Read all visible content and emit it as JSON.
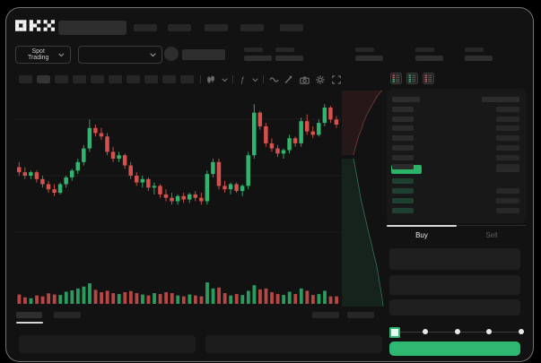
{
  "window": {
    "bg": "#121212",
    "border": "rgba(215,215,215,0.5)"
  },
  "colors": {
    "green": "#2eb872",
    "red": "#d5514d",
    "last_price_green": "#2bb467",
    "bid_row_green": "#1d4030",
    "text_bright": "#e9eaec",
    "text_dim": "#585c62",
    "placeholder": "#272727"
  },
  "header": {
    "logo": "OKX",
    "nav_item_count": 5
  },
  "market_bar": {
    "selector_label": "Spot Trading",
    "stat_group_count": 5
  },
  "chart_toolbar": {
    "interval_button_count": 10,
    "icons": [
      "chart-type-icon",
      "chevron-down-icon",
      "indicator-icon",
      "chevron-down-icon",
      "wave-icon",
      "draw-icon",
      "camera-icon",
      "settings-icon",
      "fullscreen-icon"
    ]
  },
  "orderbook": {
    "view_icons": [
      "book-combined-icon",
      "book-bids-icon",
      "book-asks-icon"
    ],
    "ask_row_count": 7,
    "bid_row_count": 4,
    "bid_right_bars": [
      false,
      true,
      true,
      true
    ]
  },
  "trade_form": {
    "tabs": [
      {
        "label": "Buy",
        "active": true
      },
      {
        "label": "Sell",
        "active": false
      }
    ],
    "input_box_count": 3,
    "slider": {
      "stops": 5,
      "active_stop": 0
    }
  },
  "chart_data": {
    "type": "candlestick",
    "title": "",
    "xlabel": "time (no labels shown)",
    "ylabel": "price (no labels shown, relative scale)",
    "ylim": [
      0,
      100
    ],
    "grid": "faint horizontal lines",
    "candle_format": [
      "open",
      "high",
      "low",
      "close"
    ],
    "candles": [
      [
        55,
        58,
        50,
        52
      ],
      [
        52,
        55,
        48,
        50
      ],
      [
        50,
        53,
        48,
        52
      ],
      [
        52,
        53,
        46,
        48
      ],
      [
        48,
        50,
        43,
        45
      ],
      [
        45,
        47,
        40,
        42
      ],
      [
        42,
        45,
        38,
        40
      ],
      [
        40,
        46,
        39,
        45
      ],
      [
        45,
        50,
        43,
        49
      ],
      [
        49,
        54,
        47,
        53
      ],
      [
        53,
        60,
        51,
        58
      ],
      [
        58,
        68,
        56,
        66
      ],
      [
        66,
        83,
        64,
        78
      ],
      [
        78,
        80,
        73,
        75
      ],
      [
        75,
        78,
        71,
        73
      ],
      [
        73,
        75,
        62,
        64
      ],
      [
        64,
        67,
        58,
        60
      ],
      [
        60,
        64,
        58,
        62
      ],
      [
        62,
        63,
        54,
        56
      ],
      [
        56,
        58,
        48,
        50
      ],
      [
        50,
        52,
        44,
        46
      ],
      [
        46,
        50,
        43,
        48
      ],
      [
        48,
        49,
        41,
        43
      ],
      [
        43,
        46,
        39,
        44
      ],
      [
        44,
        45,
        37,
        39
      ],
      [
        39,
        42,
        35,
        37
      ],
      [
        37,
        40,
        33,
        35
      ],
      [
        35,
        39,
        33,
        38
      ],
      [
        38,
        40,
        34,
        36
      ],
      [
        36,
        40,
        34,
        39
      ],
      [
        39,
        41,
        35,
        37
      ],
      [
        37,
        40,
        33,
        35
      ],
      [
        35,
        53,
        33,
        51
      ],
      [
        51,
        60,
        49,
        58
      ],
      [
        58,
        60,
        42,
        44
      ],
      [
        44,
        47,
        40,
        42
      ],
      [
        42,
        46,
        39,
        45
      ],
      [
        45,
        46,
        40,
        41
      ],
      [
        41,
        45,
        38,
        44
      ],
      [
        44,
        64,
        42,
        62
      ],
      [
        62,
        92,
        60,
        87
      ],
      [
        87,
        88,
        77,
        79
      ],
      [
        79,
        81,
        67,
        69
      ],
      [
        69,
        72,
        64,
        66
      ],
      [
        66,
        68,
        61,
        63
      ],
      [
        63,
        66,
        60,
        65
      ],
      [
        65,
        74,
        63,
        72
      ],
      [
        72,
        73,
        67,
        69
      ],
      [
        69,
        84,
        67,
        82
      ],
      [
        82,
        86,
        74,
        76
      ],
      [
        76,
        79,
        72,
        74
      ],
      [
        74,
        83,
        73,
        81
      ],
      [
        81,
        92,
        79,
        90
      ],
      [
        90,
        91,
        81,
        83
      ],
      [
        83,
        85,
        78,
        80
      ]
    ],
    "volumes": [
      40,
      28,
      24,
      36,
      32,
      45,
      40,
      38,
      52,
      58,
      66,
      74,
      88,
      60,
      50,
      56,
      46,
      42,
      50,
      55,
      46,
      40,
      36,
      46,
      42,
      50,
      46,
      36,
      32,
      40,
      36,
      32,
      92,
      66,
      70,
      46,
      36,
      42,
      38,
      56,
      80,
      62,
      66,
      50,
      42,
      38,
      52,
      42,
      66,
      56,
      38,
      42,
      56,
      32,
      32
    ],
    "colors": {
      "up": "#2fb56d",
      "down": "#d5514d"
    },
    "depth": {
      "orientation": "vertical, asks above bids",
      "asks_steps": [
        [
          13,
          76
        ],
        [
          15,
          68
        ],
        [
          17,
          61
        ],
        [
          19,
          54
        ],
        [
          22,
          47
        ],
        [
          24,
          40
        ],
        [
          27,
          33
        ],
        [
          31,
          25
        ],
        [
          35,
          18
        ],
        [
          39,
          11
        ],
        [
          43,
          6
        ],
        [
          45,
          4
        ]
      ],
      "bids_steps": [
        [
          13,
          80
        ],
        [
          15,
          90
        ],
        [
          17,
          101
        ],
        [
          19,
          112
        ],
        [
          21,
          124
        ],
        [
          24,
          137
        ],
        [
          27,
          150
        ],
        [
          30,
          163
        ],
        [
          33,
          175
        ],
        [
          36,
          188
        ],
        [
          39,
          200
        ],
        [
          41,
          212
        ],
        [
          43,
          224
        ],
        [
          45,
          236
        ],
        [
          46,
          245
        ]
      ],
      "colors": {
        "asks_fill": "rgba(190,75,70,0.12)",
        "asks_line": "rgba(210,100,95,0.5)",
        "bids_fill": "rgba(55,180,120,0.10)",
        "bids_line": "rgba(85,200,145,0.5)"
      }
    }
  }
}
